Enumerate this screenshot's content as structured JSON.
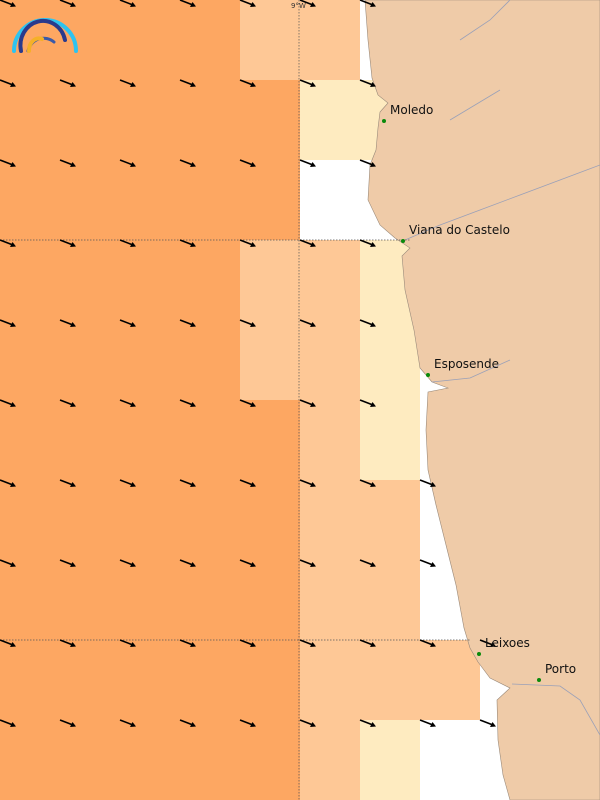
{
  "map": {
    "grid_label": "9°W",
    "colors": {
      "high": "#fda762",
      "medium": "#fec896",
      "low": "#feebc0",
      "land": "#efcba8",
      "city_dot": "#0a8a0a",
      "arrow": "#000000"
    },
    "cities": [
      {
        "name": "Moledo"
      },
      {
        "name": "Viana do Castelo"
      },
      {
        "name": "Esposende"
      },
      {
        "name": "Leixoes"
      },
      {
        "name": "Porto"
      }
    ],
    "logo": "rainbow-arc-logo"
  }
}
